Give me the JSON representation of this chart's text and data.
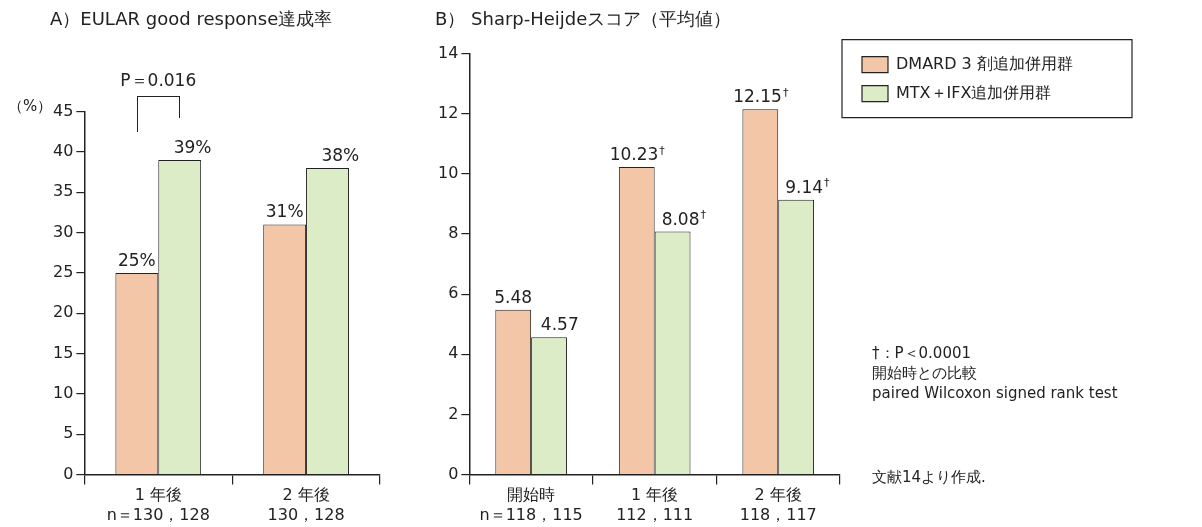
{
  "chart_data": [
    {
      "type": "bar",
      "title": "A）EULAR good response達成率",
      "ylabel": "（%）",
      "categories": [
        "1 年後\nn＝130，128",
        "2 年後\n130，128"
      ],
      "series": [
        {
          "color": "#f2c6a6",
          "values": [
            25,
            31
          ],
          "value_labels": [
            "25%",
            "31%"
          ]
        },
        {
          "color": "#dcecc6",
          "values": [
            39,
            38
          ],
          "value_labels": [
            "39%",
            "38%"
          ]
        }
      ],
      "ylim": [
        0,
        45
      ],
      "yticks": [
        0,
        5,
        10,
        15,
        20,
        25,
        30,
        35,
        40,
        45
      ],
      "grid": false,
      "legend": false,
      "annotations": [
        "P＝0.016"
      ]
    },
    {
      "type": "bar",
      "title": "B） Sharp-Heijdeスコア（平均値）",
      "categories": [
        "開始時\nn＝118，115",
        "1 年後\n112，111",
        "2 年後\n118，117"
      ],
      "series": [
        {
          "name": "DMARD 3 剤追加併用群",
          "color": "#f2c6a6",
          "values": [
            5.48,
            10.23,
            12.15
          ],
          "value_labels": [
            "5.48",
            "10.23$^{†}$",
            "12.15$^{†}$"
          ]
        },
        {
          "name": "MTX＋IFX追加併用群",
          "color": "#dcecc6",
          "values": [
            4.57,
            8.08,
            9.14
          ],
          "value_labels": [
            "4.57",
            "8.08$^{†}$",
            "9.14$^{†}$"
          ]
        }
      ],
      "ylim": [
        0,
        14
      ],
      "yticks": [
        0,
        2,
        4,
        6,
        8,
        10,
        12,
        14
      ],
      "grid": false,
      "legend": "top right",
      "annotations": [
        "†：P＜0.0001",
        "開始時との比較",
        "paired Wilcoxon signed rank test",
        "文献14より作成."
      ]
    }
  ]
}
